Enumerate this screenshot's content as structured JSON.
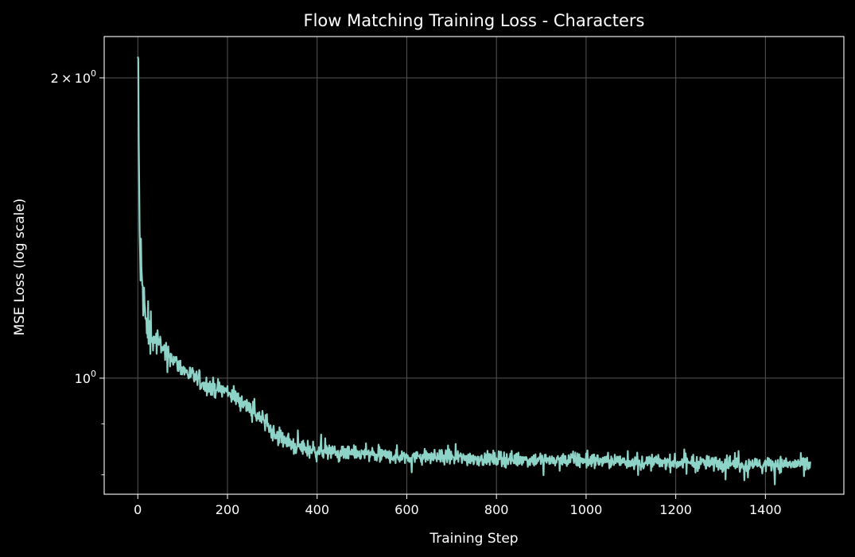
{
  "chart_data": {
    "type": "line",
    "title": "Flow Matching Training Loss - Characters",
    "xlabel": "Training Step",
    "ylabel": "MSE Loss (log scale)",
    "y_scale": "log",
    "xlim": [
      -75,
      1575
    ],
    "ylim": [
      0.765,
      2.2
    ],
    "x_ticks": [
      0,
      200,
      400,
      600,
      800,
      1000,
      1200,
      1400
    ],
    "y_major_ticks": [
      {
        "value": 1,
        "base": "10",
        "exp": "0",
        "mantissa": ""
      },
      {
        "value": 2,
        "base": "10",
        "exp": "0",
        "mantissa": "2 × "
      }
    ],
    "y_minor_ticks": [
      0.8,
      0.9
    ],
    "grid": true,
    "legend": "none",
    "colors": {
      "background": "#000000",
      "line": "#8dd3c7",
      "grid": "#555555",
      "axes": "#ffffff",
      "text": "#ffffff"
    },
    "series_keypoints": [
      [
        0,
        2.09
      ],
      [
        5,
        1.3
      ],
      [
        20,
        1.12
      ],
      [
        50,
        1.08
      ],
      [
        100,
        1.02
      ],
      [
        150,
        0.985
      ],
      [
        200,
        0.97
      ],
      [
        250,
        0.935
      ],
      [
        300,
        0.885
      ],
      [
        350,
        0.855
      ],
      [
        400,
        0.845
      ],
      [
        500,
        0.838
      ],
      [
        600,
        0.835
      ],
      [
        800,
        0.83
      ],
      [
        1000,
        0.827
      ],
      [
        1200,
        0.823
      ],
      [
        1400,
        0.82
      ],
      [
        1500,
        0.82
      ]
    ],
    "noise_sigma": 0.012,
    "steps": 1500
  }
}
